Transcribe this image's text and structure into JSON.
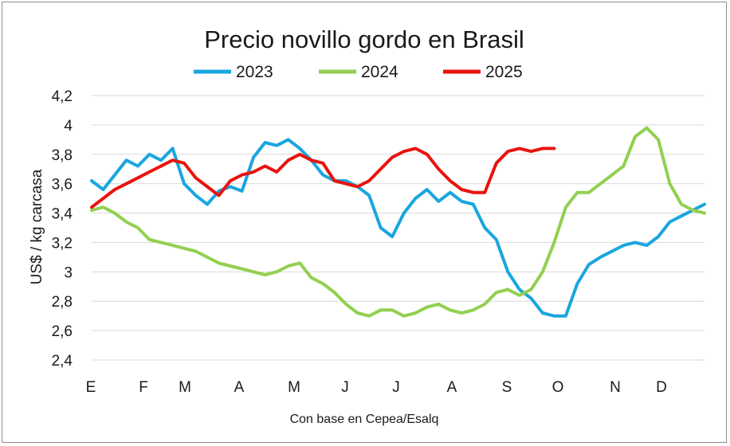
{
  "chart_data": {
    "type": "line",
    "title": "Precio novillo gordo en Brasil",
    "ylabel": "US$ / kg carcasa",
    "xlabel": "",
    "source_note": "Con base en Cepea/Esalq",
    "ylim": [
      2.4,
      4.2
    ],
    "y_ticks": [
      "2,4",
      "2,6",
      "2,8",
      "3",
      "3,2",
      "3,4",
      "3,6",
      "3,8",
      "4",
      "4,2"
    ],
    "y_tick_values": [
      2.4,
      2.6,
      2.8,
      3.0,
      3.2,
      3.4,
      3.6,
      3.8,
      4.0,
      4.2
    ],
    "x_month_labels": [
      "E",
      "F",
      "M",
      "A",
      "M",
      "J",
      "J",
      "A",
      "S",
      "O",
      "N",
      "D"
    ],
    "x_unit": "week of year",
    "x_range": [
      1,
      52
    ],
    "grid": true,
    "legend_position": "top",
    "series": [
      {
        "name": "2023",
        "color": "#1aa6df",
        "points": [
          [
            1,
            3.62
          ],
          [
            2,
            3.56
          ],
          [
            3,
            3.66
          ],
          [
            4,
            3.76
          ],
          [
            5,
            3.72
          ],
          [
            6,
            3.8
          ],
          [
            7,
            3.76
          ],
          [
            8,
            3.84
          ],
          [
            9,
            3.6
          ],
          [
            10,
            3.52
          ],
          [
            11,
            3.46
          ],
          [
            12,
            3.55
          ],
          [
            13,
            3.58
          ],
          [
            14,
            3.55
          ],
          [
            15,
            3.78
          ],
          [
            16,
            3.88
          ],
          [
            17,
            3.86
          ],
          [
            18,
            3.9
          ],
          [
            19,
            3.84
          ],
          [
            20,
            3.76
          ],
          [
            21,
            3.66
          ],
          [
            22,
            3.62
          ],
          [
            23,
            3.62
          ],
          [
            24,
            3.58
          ],
          [
            25,
            3.52
          ],
          [
            26,
            3.3
          ],
          [
            27,
            3.24
          ],
          [
            28,
            3.4
          ],
          [
            29,
            3.5
          ],
          [
            30,
            3.56
          ],
          [
            31,
            3.48
          ],
          [
            32,
            3.54
          ],
          [
            33,
            3.48
          ],
          [
            34,
            3.46
          ],
          [
            35,
            3.3
          ],
          [
            36,
            3.22
          ],
          [
            37,
            3.0
          ],
          [
            38,
            2.88
          ],
          [
            39,
            2.82
          ],
          [
            40,
            2.72
          ],
          [
            41,
            2.7
          ],
          [
            42,
            2.7
          ],
          [
            43,
            2.92
          ],
          [
            44,
            3.05
          ],
          [
            45,
            3.1
          ],
          [
            46,
            3.14
          ],
          [
            47,
            3.18
          ],
          [
            48,
            3.2
          ],
          [
            49,
            3.18
          ],
          [
            50,
            3.24
          ],
          [
            51,
            3.34
          ],
          [
            52,
            3.38
          ],
          [
            53,
            3.42
          ],
          [
            54,
            3.46
          ]
        ]
      },
      {
        "name": "2024",
        "color": "#92d050",
        "points": [
          [
            1,
            3.42
          ],
          [
            2,
            3.44
          ],
          [
            3,
            3.4
          ],
          [
            4,
            3.34
          ],
          [
            5,
            3.3
          ],
          [
            6,
            3.22
          ],
          [
            7,
            3.2
          ],
          [
            8,
            3.18
          ],
          [
            9,
            3.16
          ],
          [
            10,
            3.14
          ],
          [
            11,
            3.1
          ],
          [
            12,
            3.06
          ],
          [
            13,
            3.04
          ],
          [
            14,
            3.02
          ],
          [
            15,
            3.0
          ],
          [
            16,
            2.98
          ],
          [
            17,
            3.0
          ],
          [
            18,
            3.04
          ],
          [
            19,
            3.06
          ],
          [
            20,
            2.96
          ],
          [
            21,
            2.92
          ],
          [
            22,
            2.86
          ],
          [
            23,
            2.78
          ],
          [
            24,
            2.72
          ],
          [
            25,
            2.7
          ],
          [
            26,
            2.74
          ],
          [
            27,
            2.74
          ],
          [
            28,
            2.7
          ],
          [
            29,
            2.72
          ],
          [
            30,
            2.76
          ],
          [
            31,
            2.78
          ],
          [
            32,
            2.74
          ],
          [
            33,
            2.72
          ],
          [
            34,
            2.74
          ],
          [
            35,
            2.78
          ],
          [
            36,
            2.86
          ],
          [
            37,
            2.88
          ],
          [
            38,
            2.84
          ],
          [
            39,
            2.88
          ],
          [
            40,
            3.0
          ],
          [
            41,
            3.2
          ],
          [
            42,
            3.44
          ],
          [
            43,
            3.54
          ],
          [
            44,
            3.54
          ],
          [
            45,
            3.6
          ],
          [
            46,
            3.66
          ],
          [
            47,
            3.72
          ],
          [
            48,
            3.92
          ],
          [
            49,
            3.98
          ],
          [
            50,
            3.9
          ],
          [
            51,
            3.6
          ],
          [
            52,
            3.46
          ],
          [
            53,
            3.42
          ],
          [
            54,
            3.4
          ]
        ]
      },
      {
        "name": "2025",
        "color": "#e8130e",
        "points": [
          [
            1,
            3.44
          ],
          [
            2,
            3.5
          ],
          [
            3,
            3.56
          ],
          [
            4,
            3.6
          ],
          [
            5,
            3.64
          ],
          [
            6,
            3.68
          ],
          [
            7,
            3.72
          ],
          [
            8,
            3.76
          ],
          [
            9,
            3.74
          ],
          [
            10,
            3.64
          ],
          [
            11,
            3.58
          ],
          [
            12,
            3.52
          ],
          [
            13,
            3.62
          ],
          [
            14,
            3.66
          ],
          [
            15,
            3.68
          ],
          [
            16,
            3.72
          ],
          [
            17,
            3.68
          ],
          [
            18,
            3.76
          ],
          [
            19,
            3.8
          ],
          [
            20,
            3.76
          ],
          [
            21,
            3.74
          ],
          [
            22,
            3.62
          ],
          [
            23,
            3.6
          ],
          [
            24,
            3.58
          ],
          [
            25,
            3.62
          ],
          [
            26,
            3.7
          ],
          [
            27,
            3.78
          ],
          [
            28,
            3.82
          ],
          [
            29,
            3.84
          ],
          [
            30,
            3.8
          ],
          [
            31,
            3.7
          ],
          [
            32,
            3.62
          ],
          [
            33,
            3.56
          ],
          [
            34,
            3.54
          ],
          [
            35,
            3.54
          ],
          [
            36,
            3.74
          ],
          [
            37,
            3.82
          ],
          [
            38,
            3.84
          ],
          [
            39,
            3.82
          ],
          [
            40,
            3.84
          ],
          [
            41,
            3.84
          ]
        ]
      }
    ]
  }
}
